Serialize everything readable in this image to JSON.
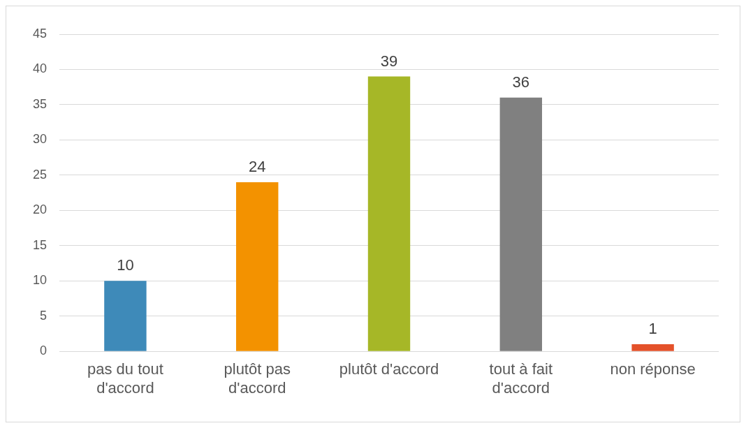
{
  "chart_data": {
    "type": "bar",
    "categories": [
      "pas du tout d'accord",
      "plutôt pas d'accord",
      "plutôt d'accord",
      "tout à fait d'accord",
      "non réponse"
    ],
    "values": [
      10,
      24,
      39,
      36,
      1
    ],
    "colors": [
      "#3e8ab9",
      "#f39200",
      "#a6b727",
      "#808080",
      "#e4512a"
    ],
    "ylim": [
      0,
      45
    ],
    "yticks": [
      0,
      5,
      10,
      15,
      20,
      25,
      30,
      35,
      40,
      45
    ],
    "grid": "y",
    "data_labels": true,
    "legend": false
  }
}
